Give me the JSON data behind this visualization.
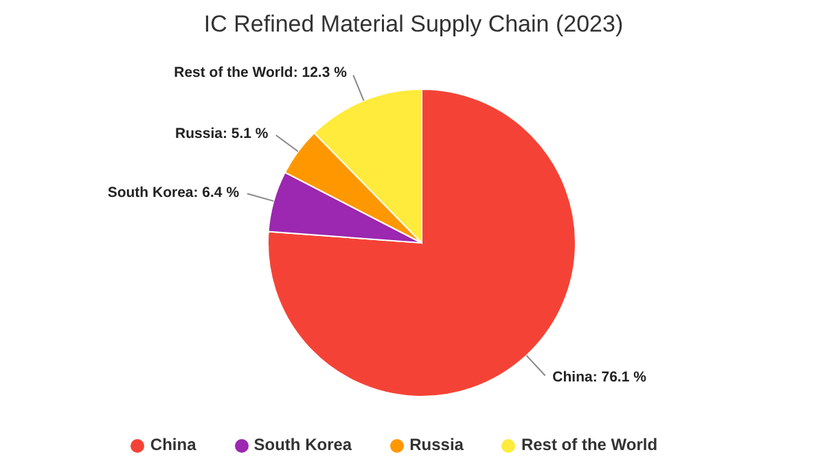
{
  "chart_data": {
    "type": "pie",
    "title": "IC Refined Material Supply Chain (2023)",
    "categories": [
      "China",
      "South Korea",
      "Russia",
      "Rest of the World"
    ],
    "values": [
      76.1,
      6.4,
      5.1,
      12.3
    ],
    "colors": [
      "#f44336",
      "#9c27b0",
      "#ff9800",
      "#ffeb3b"
    ],
    "value_labels": [
      "China: 76.1 %",
      "South Korea: 6.4 %",
      "Russia: 5.1 %",
      "Rest of the World: 12.3 %"
    ],
    "legend": "bottom"
  }
}
